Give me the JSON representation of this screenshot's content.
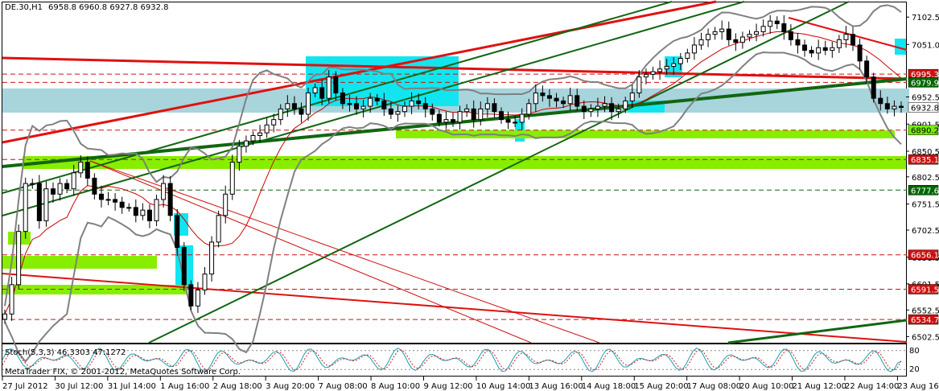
{
  "chart_data": {
    "type": "candlestick",
    "symbol_header": "DE.30,H1",
    "ohlc_header": "6958.8 6960.8 6927.8 6932.8",
    "copyright": "MetaTrader FIX, © 2001-2012, MetaQuotes Software Corp.",
    "y_range": [
      6491,
      7130
    ],
    "y_ticks": [
      "7102.5",
      "7051.0",
      "6952.5",
      "6901.5",
      "6850.5",
      "6802.5",
      "6751.5",
      "6702.5",
      "6651.5",
      "6601.5",
      "6552.5",
      "6502.5"
    ],
    "y_tick_values": [
      7102.5,
      7051.0,
      6952.5,
      6901.5,
      6850.5,
      6802.5,
      6751.5,
      6702.5,
      6651.5,
      6601.5,
      6552.5,
      6502.5
    ],
    "x_ticks": [
      "27 Jul 2012",
      "30 Jul 12:00",
      "31 Jul 14:00",
      "1 Aug 16:00",
      "2 Aug 18:00",
      "3 Aug 20:00",
      "7 Aug 08:00",
      "8 Aug 10:00",
      "9 Aug 12:00",
      "10 Aug 14:00",
      "13 Aug 16:00",
      "14 Aug 18:00",
      "15 Aug 20:00",
      "17 Aug 08:00",
      "20 Aug 10:00",
      "21 Aug 12:00",
      "22 Aug 14:00",
      "23 Aug 16:00"
    ],
    "price_tags": [
      {
        "label": "6995.3",
        "value": 6995.3,
        "bg": "#cc1010",
        "fg": "#ffffff"
      },
      {
        "label": "6979.9",
        "value": 6979.9,
        "bg": "#006600",
        "fg": "#ffffff"
      },
      {
        "label": "6932.8",
        "value": 6932.8,
        "bg": "#ffffff",
        "fg": "#000000"
      },
      {
        "label": "6890.2",
        "value": 6890.2,
        "bg": "#77ee00",
        "fg": "#000000"
      },
      {
        "label": "6835.1",
        "value": 6835.1,
        "bg": "#cc1010",
        "fg": "#ffffff"
      },
      {
        "label": "6777.6",
        "value": 6777.6,
        "bg": "#006600",
        "fg": "#ffffff"
      },
      {
        "label": "6656.1",
        "value": 6656.1,
        "bg": "#cc1010",
        "fg": "#ffffff"
      },
      {
        "label": "6591.5",
        "value": 6591.5,
        "bg": "#cc1010",
        "fg": "#ffffff"
      },
      {
        "label": "6534.7",
        "value": 6534.7,
        "bg": "#cc1010",
        "fg": "#ffffff"
      }
    ],
    "close_series": [
      6545,
      6600,
      6700,
      6790,
      6790,
      6720,
      6780,
      6770,
      6790,
      6780,
      6810,
      6830,
      6800,
      6770,
      6760,
      6760,
      6755,
      6745,
      6745,
      6730,
      6740,
      6720,
      6760,
      6790,
      6730,
      6670,
      6600,
      6560,
      6590,
      6620,
      6680,
      6730,
      6770,
      6830,
      6860,
      6870,
      6880,
      6885,
      6900,
      6910,
      6930,
      6940,
      6930,
      6920,
      6960,
      6970,
      6950,
      6990,
      6960,
      6940,
      6940,
      6930,
      6935,
      6950,
      6945,
      6930,
      6920,
      6925,
      6935,
      6945,
      6940,
      6930,
      6920,
      6905,
      6910,
      6905,
      6925,
      6930,
      6910,
      6930,
      6940,
      6925,
      6910,
      6905,
      6905,
      6920,
      6940,
      6960,
      6955,
      6950,
      6945,
      6940,
      6955,
      6935,
      6925,
      6930,
      6935,
      6940,
      6925,
      6930,
      6945,
      6960,
      6990,
      6995,
      7000,
      7005,
      7010,
      7015,
      7025,
      7035,
      7050,
      7060,
      7070,
      7075,
      7080,
      7060,
      7055,
      7065,
      7070,
      7075,
      7085,
      7095,
      7090,
      7075,
      7060,
      7050,
      7040,
      7035,
      7045,
      7040,
      7045,
      7060,
      7070,
      7050,
      7020,
      6990,
      6950,
      6940,
      6930,
      6935,
      6932.8
    ],
    "stochastic": {
      "label": "Stoch(5,3,3) 46.3303 47.1272",
      "main": 46.3303,
      "signal": 47.1272,
      "levels": [
        "80",
        "20"
      ],
      "range": [
        0,
        100
      ]
    },
    "annotations": {
      "horizontal_lines": [
        6995.3,
        6979.9,
        6890.2,
        6835.1,
        6777.6,
        6656.1,
        6591.5,
        6534.7
      ]
    }
  },
  "colors": {
    "candle": "#000000",
    "bollinger": "#808080",
    "ma": "#cc0000",
    "trend_red": "#e01010",
    "trend_green": "#116611",
    "zone_cyan": "#11e6f0",
    "zone_lightblue": "#a8d4dc",
    "zone_green": "#88ee00"
  }
}
